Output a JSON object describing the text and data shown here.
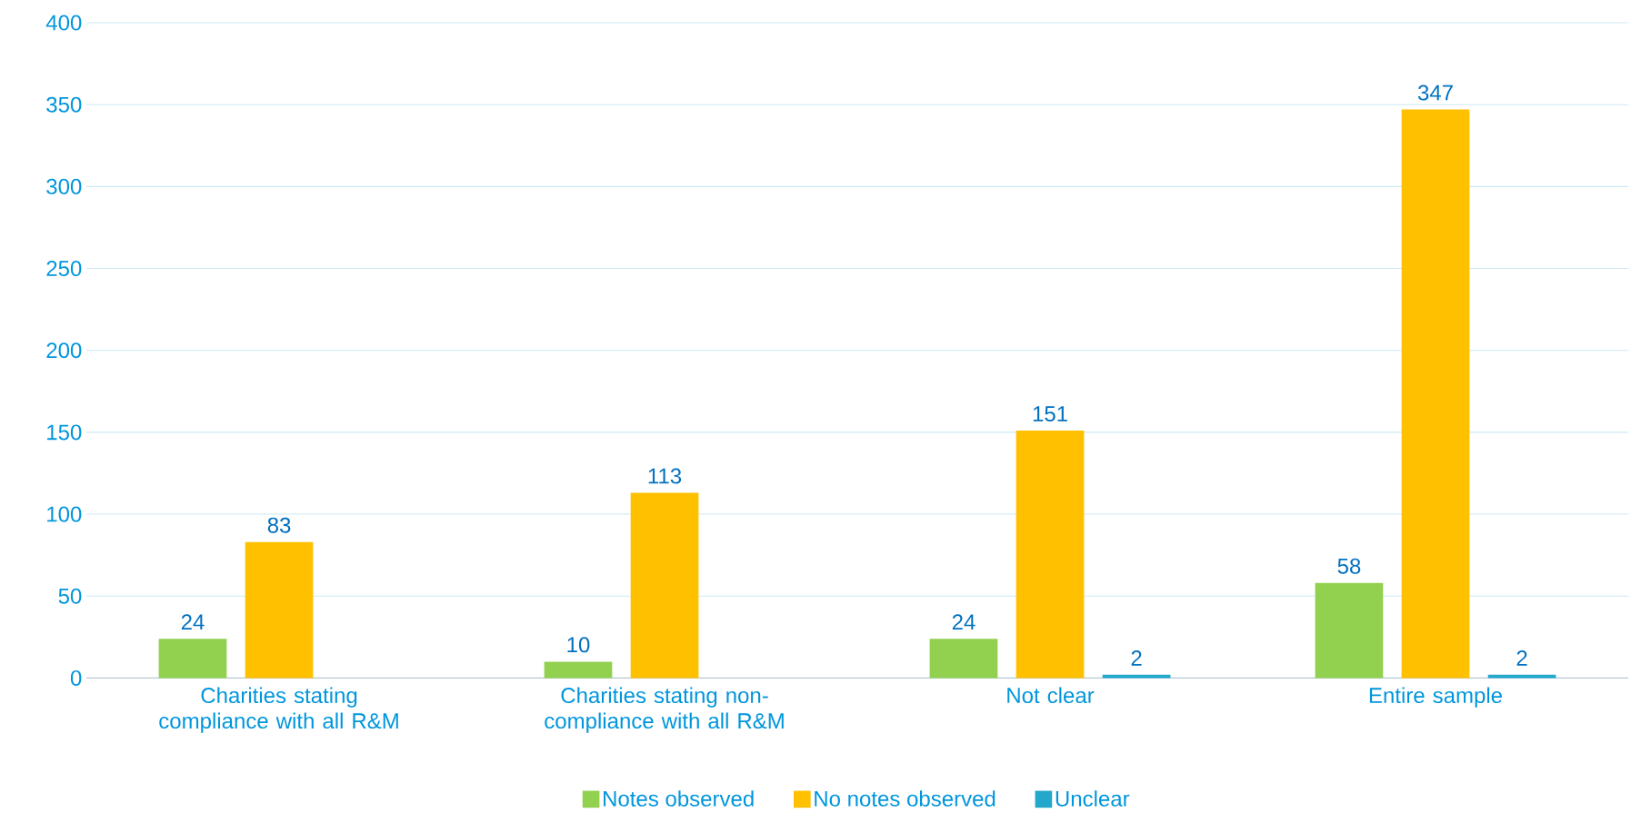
{
  "chart_data": {
    "type": "bar",
    "categories": [
      "Charities stating compliance with all R&M",
      "Charities stating non-compliance with all R&M",
      "Not clear",
      "Entire sample"
    ],
    "series": [
      {
        "name": "Notes observed",
        "color": "#92d050",
        "values": [
          24,
          10,
          24,
          58
        ]
      },
      {
        "name": "No notes observed",
        "color": "#ffc000",
        "values": [
          83,
          113,
          151,
          347
        ]
      },
      {
        "name": "Unclear",
        "color": "#23a8cb",
        "values": [
          null,
          null,
          2,
          2
        ]
      }
    ],
    "ylim": [
      0,
      400
    ],
    "yticks": [
      0,
      50,
      100,
      150,
      200,
      250,
      300,
      350,
      400
    ],
    "grid": "y",
    "legend": "bottom",
    "data_labels": true
  }
}
